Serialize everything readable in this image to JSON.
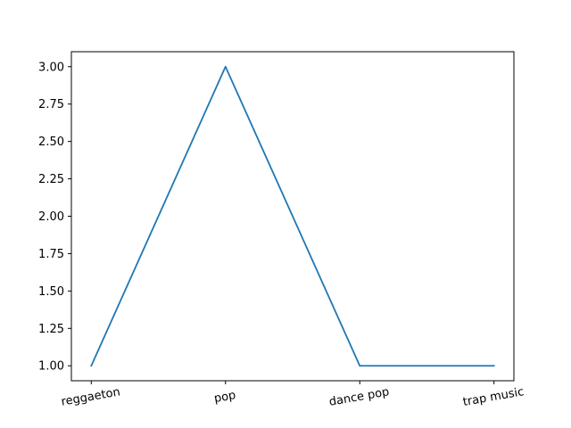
{
  "chart_data": {
    "type": "line",
    "title": "",
    "xlabel": "",
    "ylabel": "",
    "categories": [
      "reggaeton",
      "pop",
      "dance pop",
      "trap music"
    ],
    "series": [
      {
        "values": [
          1,
          3,
          1,
          1
        ],
        "color": "#1f77b4"
      }
    ],
    "ylim": [
      0.9,
      3.1
    ],
    "yticks": [
      1.0,
      1.25,
      1.5,
      1.75,
      2.0,
      2.25,
      2.5,
      2.75,
      3.0
    ],
    "ytick_labels": [
      "1.00",
      "1.25",
      "1.50",
      "1.75",
      "2.00",
      "2.25",
      "2.50",
      "2.75",
      "3.00"
    ],
    "grid": false,
    "legend": "none",
    "xtick_rotation_deg": -10
  }
}
